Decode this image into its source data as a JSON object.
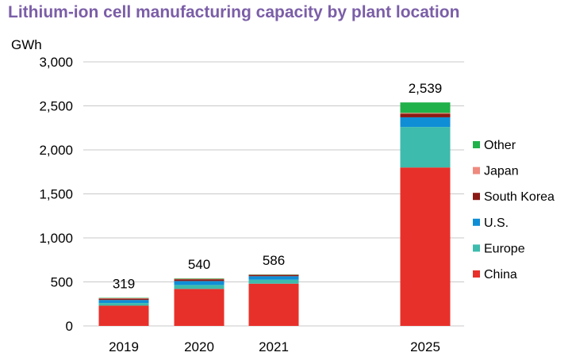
{
  "chart_data": {
    "type": "bar",
    "stacked": true,
    "title": "Lithium-ion cell manufacturing capacity by plant location",
    "ylabel": "GWh",
    "xlabel": "",
    "ylim": [
      0,
      3000
    ],
    "yticks": [
      "0",
      "500",
      "1,000",
      "1,500",
      "2,000",
      "2,500",
      "3,000"
    ],
    "ytick_values": [
      0,
      500,
      1000,
      1500,
      2000,
      2500,
      3000
    ],
    "grid": "horizontal",
    "legend_position": "right",
    "categories": [
      "2019",
      "2020",
      "2021",
      "2025"
    ],
    "totals": [
      "319",
      "540",
      "586",
      "2,539"
    ],
    "series": [
      {
        "name": "China",
        "color": "#e8302a",
        "values": [
          230,
          420,
          480,
          1800
        ]
      },
      {
        "name": "Europe",
        "color": "#3dbbad",
        "values": [
          30,
          45,
          45,
          460
        ]
      },
      {
        "name": "U.S.",
        "color": "#0f8ed6",
        "values": [
          35,
          45,
          40,
          110
        ]
      },
      {
        "name": "South Korea",
        "color": "#8b1a14",
        "values": [
          15,
          20,
          15,
          40
        ]
      },
      {
        "name": "Japan",
        "color": "#ef8a7e",
        "values": [
          5,
          5,
          3,
          10
        ]
      },
      {
        "name": "Other",
        "color": "#20b14a",
        "values": [
          4,
          5,
          3,
          119
        ]
      }
    ]
  }
}
